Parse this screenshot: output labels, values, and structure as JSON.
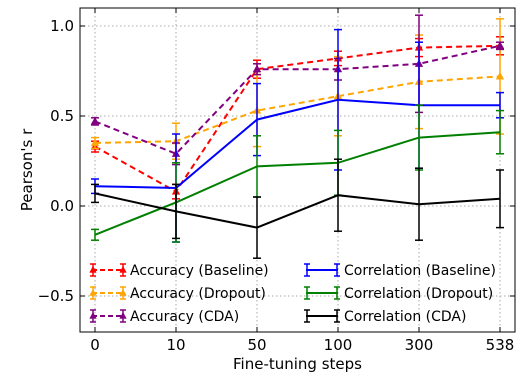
{
  "chart_data": {
    "type": "line",
    "title": "",
    "xlabel": "Fine-tuning steps",
    "ylabel": "Pearson's r",
    "categories": [
      "0",
      "10",
      "50",
      "100",
      "300",
      "538"
    ],
    "ylim": [
      -0.7,
      1.1
    ],
    "yticks": [
      -0.5,
      0.0,
      0.5,
      1.0
    ],
    "ytick_labels": [
      "−0.5",
      "0.0",
      "0.5",
      "1.0"
    ],
    "grid": true,
    "legend_position": "lower-center",
    "series": [
      {
        "name": "Accuracy (Baseline)",
        "color": "#ff0000",
        "style": "dashed",
        "marker": "triangle",
        "values": [
          0.33,
          0.08,
          0.76,
          0.82,
          0.88,
          0.89
        ],
        "errors": [
          0.03,
          0.04,
          0.05,
          0.04,
          0.05,
          0.05
        ]
      },
      {
        "name": "Accuracy (Dropout)",
        "color": "#ffa500",
        "style": "dashed",
        "marker": "triangle",
        "values": [
          0.35,
          0.36,
          0.53,
          0.61,
          0.69,
          0.72
        ],
        "errors": [
          0.03,
          0.1,
          0.2,
          0.22,
          0.26,
          0.32
        ]
      },
      {
        "name": "Accuracy (CDA)",
        "color": "#800080",
        "style": "dashed",
        "marker": "triangle",
        "values": [
          0.47,
          0.29,
          0.76,
          0.76,
          0.79,
          0.89
        ],
        "errors": [
          0.02,
          0.06,
          0.03,
          0.06,
          0.27,
          0.02
        ]
      },
      {
        "name": "Correlation (Baseline)",
        "color": "#0000ff",
        "style": "solid",
        "marker": "none",
        "values": [
          0.11,
          0.1,
          0.48,
          0.59,
          0.56,
          0.56
        ],
        "errors": [
          0.04,
          0.3,
          0.2,
          0.39,
          0.35,
          0.07
        ]
      },
      {
        "name": "Correlation (Dropout)",
        "color": "#008000",
        "style": "solid",
        "marker": "none",
        "values": [
          -0.16,
          0.02,
          0.22,
          0.24,
          0.38,
          0.41
        ],
        "errors": [
          0.03,
          0.22,
          0.17,
          0.18,
          0.18,
          0.12
        ]
      },
      {
        "name": "Correlation (CDA)",
        "color": "#000000",
        "style": "solid",
        "marker": "none",
        "values": [
          0.07,
          -0.03,
          -0.12,
          0.06,
          0.01,
          0.04
        ],
        "errors": [
          0.05,
          0.15,
          0.17,
          0.2,
          0.2,
          0.16
        ]
      }
    ]
  }
}
